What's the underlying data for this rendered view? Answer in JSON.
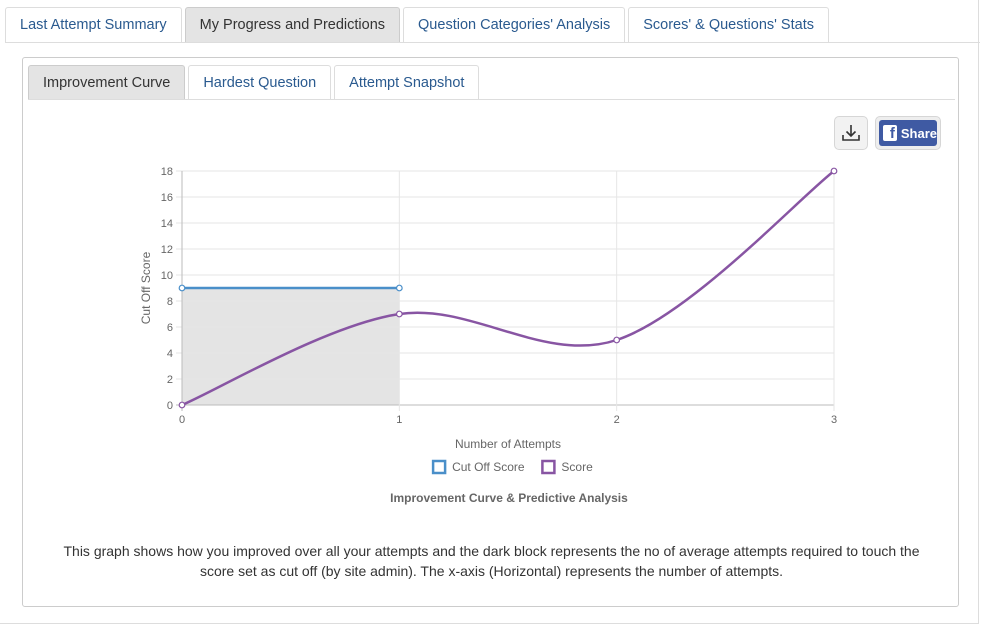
{
  "tabs": [
    {
      "label": "Last Attempt Summary",
      "active": false
    },
    {
      "label": "My Progress and Predictions",
      "active": true
    },
    {
      "label": "Question Categories' Analysis",
      "active": false
    },
    {
      "label": "Scores' & Questions' Stats",
      "active": false
    }
  ],
  "subtabs": [
    {
      "label": "Improvement Curve",
      "active": true
    },
    {
      "label": "Hardest Question",
      "active": false
    },
    {
      "label": "Attempt Snapshot",
      "active": false
    }
  ],
  "toolbar": {
    "download_icon": "download-icon",
    "share_label": "Share",
    "facebook_icon": "facebook-icon"
  },
  "chart_data": {
    "type": "line",
    "title": "Improvement Curve & Predictive Analysis",
    "xlabel": "Number of Attempts",
    "ylabel": "Cut Off Score",
    "x": [
      0,
      1,
      2,
      3
    ],
    "x_ticks": [
      "0",
      "1",
      "2",
      "3"
    ],
    "y_ticks": [
      "0",
      "2",
      "4",
      "6",
      "8",
      "10",
      "12",
      "14",
      "16",
      "18"
    ],
    "xlim": [
      0,
      3
    ],
    "ylim": [
      0,
      18
    ],
    "grid": true,
    "legend_position": "bottom",
    "series": [
      {
        "name": "Cut Off Score",
        "x": [
          0,
          1
        ],
        "values": [
          9,
          9
        ],
        "color": "#4a8fc9",
        "fill_under": true,
        "fill_color": "#e4e4e4"
      },
      {
        "name": "Score",
        "x": [
          0,
          1,
          2,
          3
        ],
        "values": [
          0,
          7,
          5,
          18
        ],
        "color": "#8855a3",
        "smooth": true
      }
    ]
  },
  "description": "This graph shows how you improved over all your attempts and the dark block represents the no of average attempts required to touch the score set as cut off (by site admin). The x-axis (Horizontal) represents the number of attempts."
}
